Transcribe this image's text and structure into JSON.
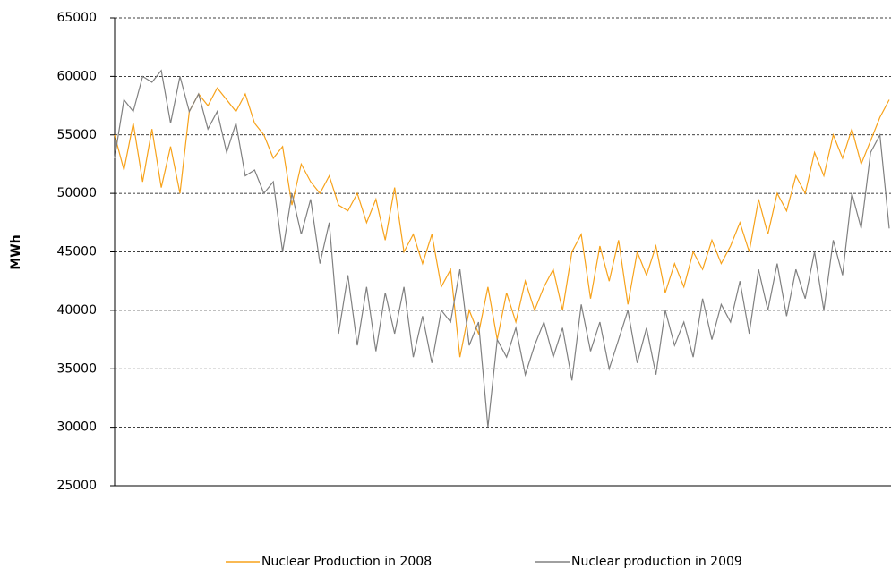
{
  "chart_data": {
    "type": "line",
    "y_label": "MWh",
    "ylim": [
      25000,
      65000
    ],
    "yticks": [
      25000,
      30000,
      35000,
      40000,
      45000,
      50000,
      55000,
      60000,
      65000
    ],
    "grid": true,
    "series": [
      {
        "name": "Nuclear Production in 2008",
        "color": "#f7a21a",
        "values": [
          55000,
          52000,
          56000,
          51000,
          55500,
          50500,
          54000,
          50000,
          57000,
          58500,
          57500,
          59000,
          58000,
          57000,
          58500,
          56000,
          55000,
          53000,
          54000,
          49000,
          52500,
          51000,
          50000,
          51500,
          49000,
          48500,
          50000,
          47500,
          49500,
          46000,
          50500,
          45000,
          46500,
          44000,
          46500,
          42000,
          43500,
          36000,
          40000,
          38000,
          42000,
          37500,
          41500,
          39000,
          42500,
          40000,
          42000,
          43500,
          40000,
          45000,
          46500,
          41000,
          45500,
          42500,
          46000,
          40500,
          45000,
          43000,
          45500,
          41500,
          44000,
          42000,
          45000,
          43500,
          46000,
          44000,
          45500,
          47500,
          45000,
          49500,
          46500,
          50000,
          48500,
          51500,
          50000,
          53500,
          51500,
          55000,
          53000,
          55500,
          52500,
          54500,
          56500,
          58000
        ]
      },
      {
        "name": "Nuclear production in 2009",
        "color": "#808080",
        "values": [
          53000,
          58000,
          57000,
          60000,
          59500,
          60500,
          56000,
          60000,
          57000,
          58500,
          55500,
          57000,
          53500,
          56000,
          51500,
          52000,
          50000,
          51000,
          45000,
          50000,
          46500,
          49500,
          44000,
          47500,
          38000,
          43000,
          37000,
          42000,
          36500,
          41500,
          38000,
          42000,
          36000,
          39500,
          35500,
          40000,
          39000,
          43500,
          37000,
          39000,
          30000,
          37500,
          36000,
          38500,
          34500,
          37000,
          39000,
          36000,
          38500,
          34000,
          40500,
          36500,
          39000,
          35000,
          37500,
          40000,
          35500,
          38500,
          34500,
          40000,
          37000,
          39000,
          36000,
          41000,
          37500,
          40500,
          39000,
          42500,
          38000,
          43500,
          40000,
          44000,
          39500,
          43500,
          41000,
          45000,
          40000,
          46000,
          43000,
          50000,
          47000,
          53500,
          55000,
          47000
        ]
      }
    ]
  }
}
